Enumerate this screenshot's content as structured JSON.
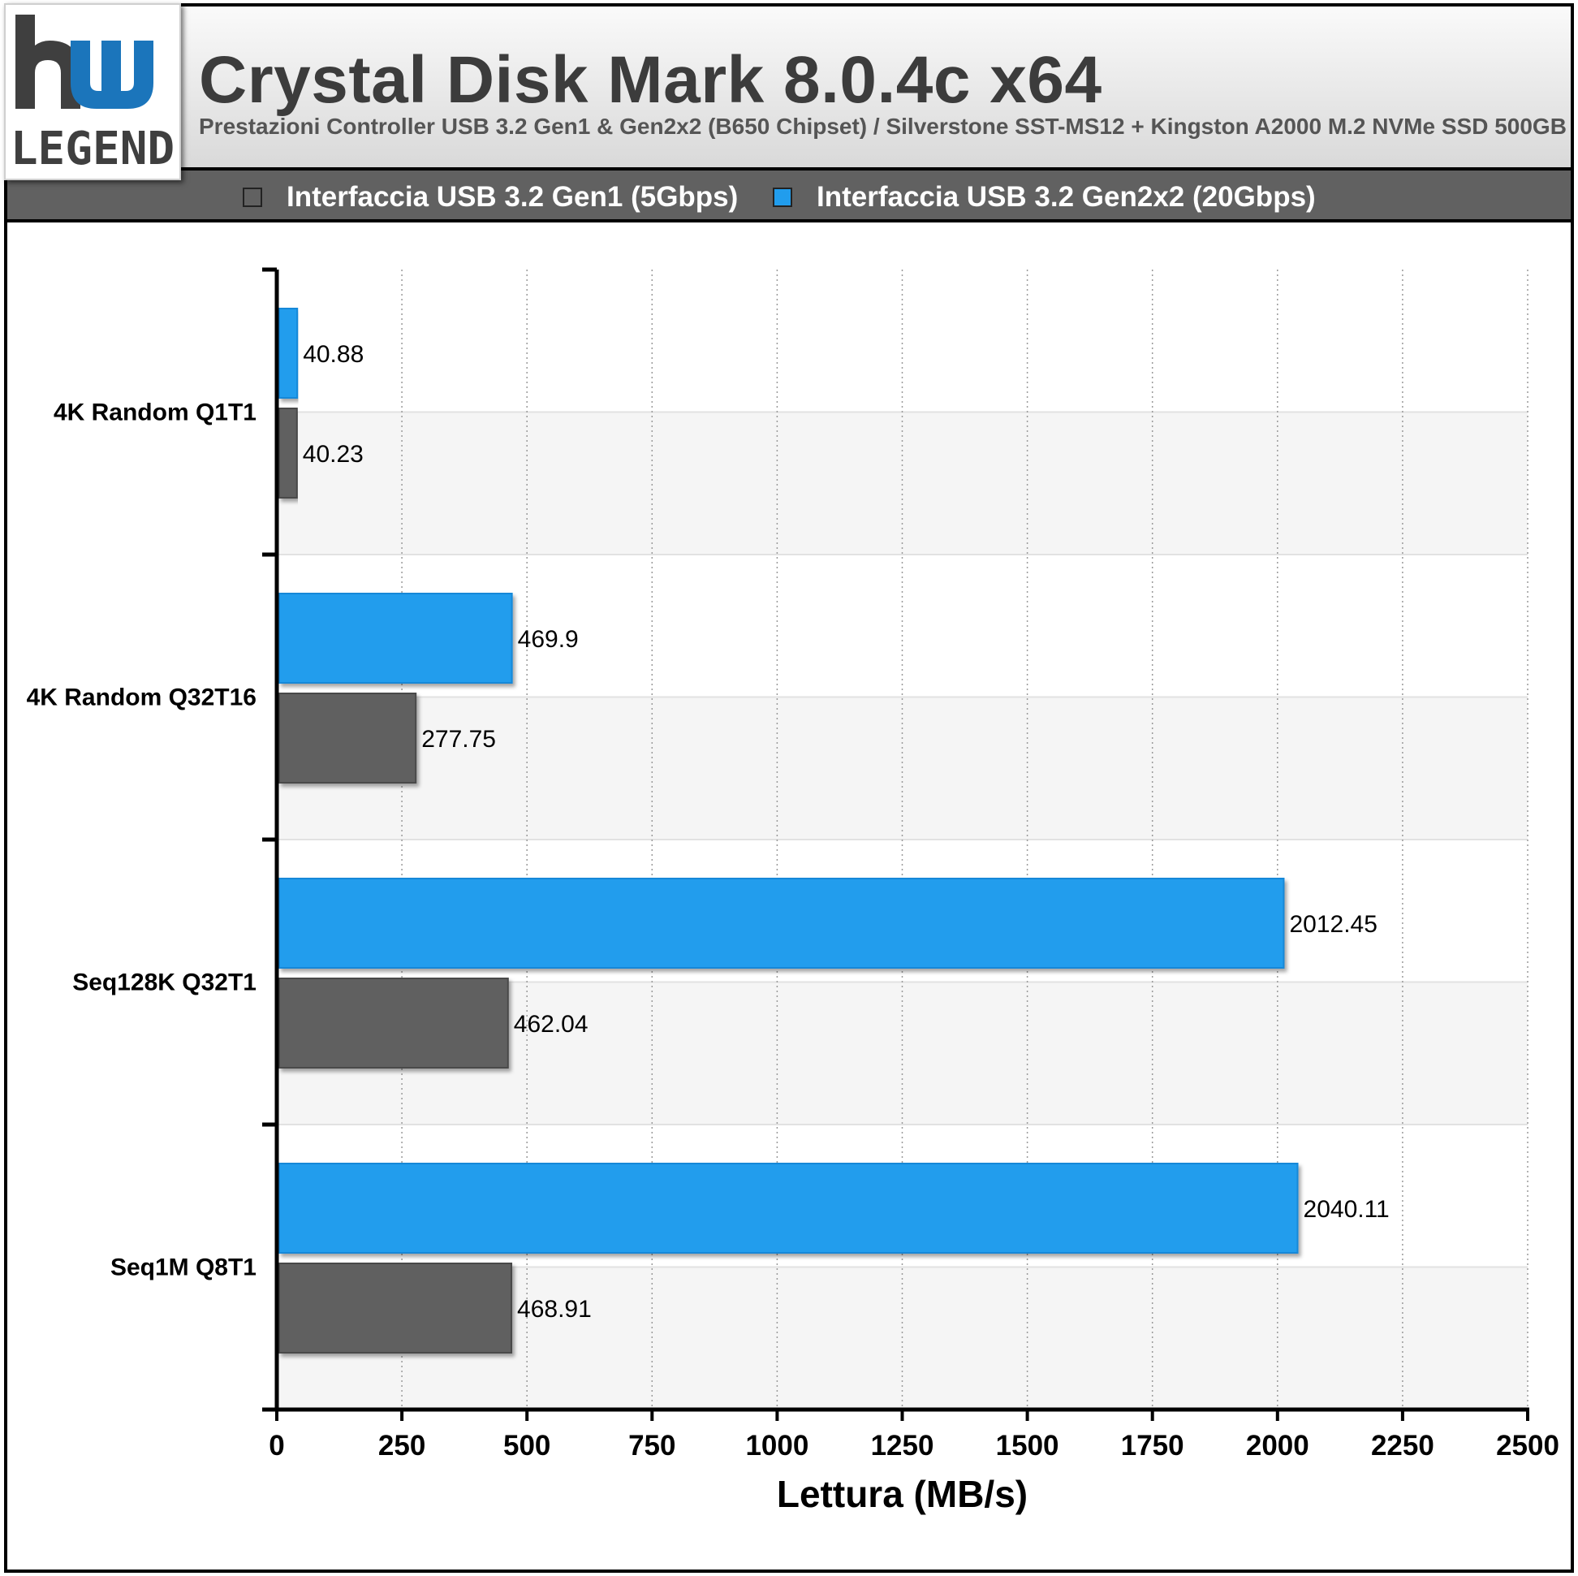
{
  "header": {
    "title": "Crystal Disk Mark 8.0.4c x64",
    "subtitle": "Prestazioni Controller USB 3.2 Gen1 & Gen2x2 (B650 Chipset) / Silverstone SST-MS12 + Kingston A2000 M.2 NVMe SSD 500GB"
  },
  "logo": {
    "text": "LEGEND",
    "icon": "hw-legend-logo-icon"
  },
  "colors": {
    "gen1": "#616161",
    "gen2x2": "#219ded",
    "header_bg": "#e6e6e6",
    "legend_bg": "#616161"
  },
  "chart_data": {
    "type": "bar",
    "orientation": "horizontal",
    "title": "Crystal Disk Mark 8.0.4c x64",
    "subtitle": "Prestazioni Controller USB 3.2 Gen1 & Gen2x2 (B650 Chipset) / Silverstone SST-MS12 + Kingston A2000 M.2 NVMe SSD 500GB",
    "xlabel": "Lettura (MB/s)",
    "ylabel": "",
    "xlim": [
      0,
      2500
    ],
    "xticks": [
      0,
      250,
      500,
      750,
      1000,
      1250,
      1500,
      1750,
      2000,
      2250,
      2500
    ],
    "grid": true,
    "legend_position": "top",
    "categories": [
      "4K Random Q1T1",
      "4K Random Q32T16",
      "Seq128K Q32T1",
      "Seq1M Q8T1"
    ],
    "series": [
      {
        "name": "Interfaccia USB 3.2 Gen1 (5Gbps)",
        "color": "#616161",
        "values": [
          40.23,
          277.75,
          462.04,
          468.91
        ]
      },
      {
        "name": "Interfaccia USB 3.2 Gen2x2 (20Gbps)",
        "color": "#219ded",
        "values": [
          40.88,
          469.9,
          2012.45,
          2040.11
        ]
      }
    ]
  }
}
